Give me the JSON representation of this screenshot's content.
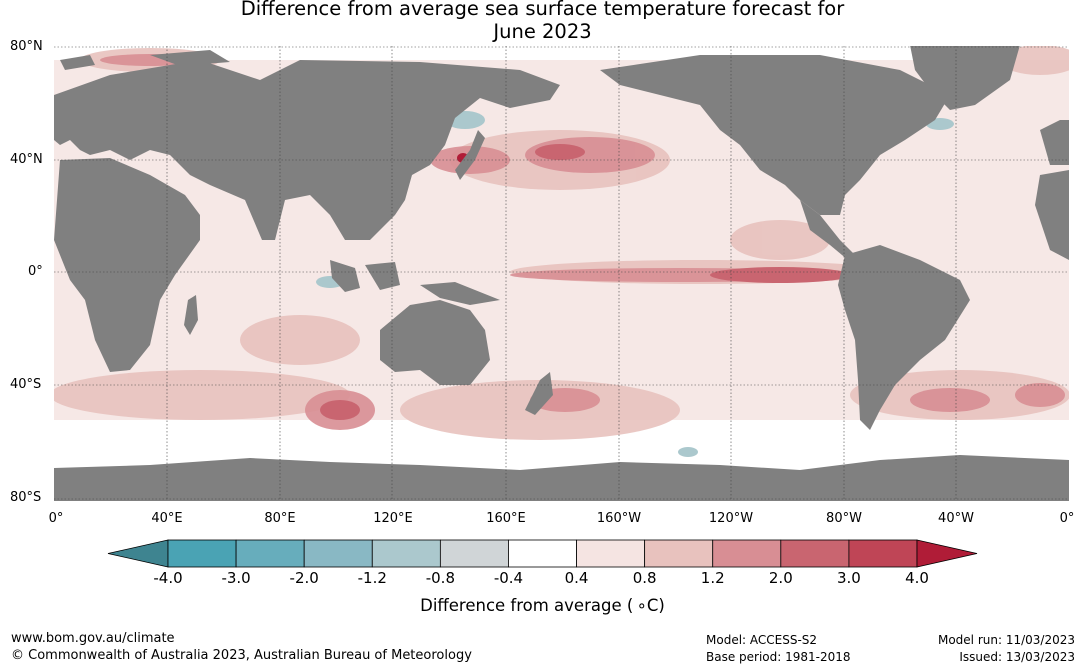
{
  "title": {
    "line1": "Difference from average sea surface temperature forecast for",
    "line2": "June 2023"
  },
  "map": {
    "ocean_color": "#ffffff",
    "land_color": "#808080",
    "grid": true,
    "lat_labels": [
      "80°N",
      "40°N",
      "0°",
      "40°S",
      "80°S"
    ],
    "lon_labels": [
      "0°",
      "40°E",
      "80°E",
      "120°E",
      "160°E",
      "160°W",
      "120°W",
      "80°W",
      "40°W",
      "0°"
    ]
  },
  "colorbar": {
    "title": "Difference from average ( ∘C)",
    "ticks": [
      "-4.0",
      "-3.0",
      "-2.0",
      "-1.2",
      "-0.8",
      "-0.4",
      "0.4",
      "0.8",
      "1.2",
      "2.0",
      "3.0",
      "4.0"
    ],
    "colors": [
      "#3e8490",
      "#4aa3b4",
      "#67adbc",
      "#89b8c4",
      "#abc8cd",
      "#d0d5d7",
      "#ffffff",
      "#f5e4e2",
      "#e8c2be",
      "#d88e94",
      "#c96570",
      "#bf4556",
      "#b01c37"
    ]
  },
  "footer": {
    "url": "www.bom.gov.au/climate",
    "copyright": "© Commonwealth of Australia 2023, Australian Bureau of Meteorology",
    "model": "Model: ACCESS-S2",
    "base_period": "Base period: 1981-2018",
    "model_run": "Model run: 11/03/2023",
    "issued": "Issued: 13/03/2023"
  }
}
